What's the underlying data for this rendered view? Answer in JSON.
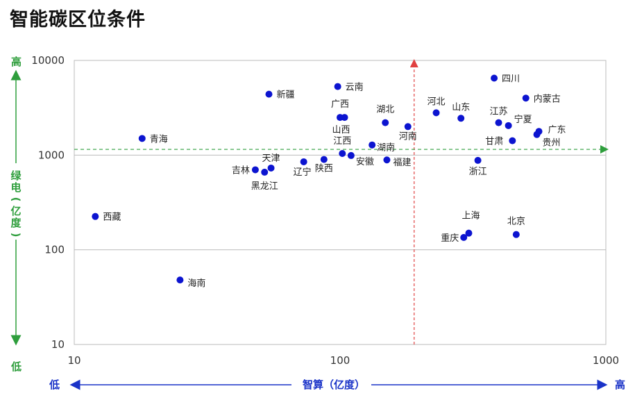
{
  "title": "智能碳区位条件",
  "chart_data": {
    "type": "scatter",
    "title": "智能碳区位条件",
    "xlabel": "智算（亿度）",
    "ylabel": "绿电（亿度）",
    "x_scale": "log",
    "y_scale": "log",
    "xlim": [
      10,
      1000
    ],
    "ylim": [
      10,
      10000
    ],
    "x_ticks": [
      "10",
      "100",
      "1000"
    ],
    "y_ticks": [
      "10",
      "100",
      "1000",
      "10000"
    ],
    "x_threshold": 190,
    "y_threshold": 1150,
    "x_low": "低",
    "x_high": "高",
    "y_low": "低",
    "y_high": "高",
    "points": [
      {
        "name": "四川",
        "x": 380,
        "y": 6500
      },
      {
        "name": "内蒙古",
        "x": 500,
        "y": 4000
      },
      {
        "name": "云南",
        "x": 98,
        "y": 5300
      },
      {
        "name": "新疆",
        "x": 54,
        "y": 4400
      },
      {
        "name": "广西",
        "x": 100,
        "y": 2500
      },
      {
        "name": "山西",
        "x": 104,
        "y": 2500
      },
      {
        "name": "湖北",
        "x": 148,
        "y": 2200
      },
      {
        "name": "河南",
        "x": 180,
        "y": 2000
      },
      {
        "name": "河北",
        "x": 230,
        "y": 2800
      },
      {
        "name": "山东",
        "x": 285,
        "y": 2450
      },
      {
        "name": "江苏",
        "x": 395,
        "y": 2200
      },
      {
        "name": "宁夏",
        "x": 430,
        "y": 2050
      },
      {
        "name": "广东",
        "x": 560,
        "y": 1780
      },
      {
        "name": "贵州",
        "x": 550,
        "y": 1650
      },
      {
        "name": "甘肃",
        "x": 445,
        "y": 1420
      },
      {
        "name": "青海",
        "x": 18,
        "y": 1500
      },
      {
        "name": "湖南",
        "x": 132,
        "y": 1280
      },
      {
        "name": "江西",
        "x": 102,
        "y": 1040
      },
      {
        "name": "安徽",
        "x": 110,
        "y": 990
      },
      {
        "name": "福建",
        "x": 150,
        "y": 890
      },
      {
        "name": "浙江",
        "x": 330,
        "y": 880
      },
      {
        "name": "天津",
        "x": 55,
        "y": 730
      },
      {
        "name": "吉林",
        "x": 48,
        "y": 700
      },
      {
        "name": "黑龙江",
        "x": 52,
        "y": 660
      },
      {
        "name": "辽宁",
        "x": 73,
        "y": 850
      },
      {
        "name": "陕西",
        "x": 87,
        "y": 900
      },
      {
        "name": "西藏",
        "x": 12,
        "y": 225
      },
      {
        "name": "上海",
        "x": 305,
        "y": 150
      },
      {
        "name": "重庆",
        "x": 292,
        "y": 135
      },
      {
        "name": "北京",
        "x": 460,
        "y": 145
      },
      {
        "name": "海南",
        "x": 25,
        "y": 48
      }
    ]
  }
}
